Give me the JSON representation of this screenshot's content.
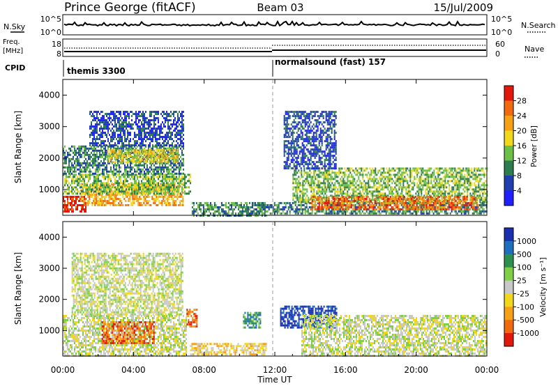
{
  "header": {
    "station": "Prince George (fitACF)",
    "beam": "Beam 03",
    "date": "15/Jul/2009"
  },
  "top_panels": {
    "nsky": {
      "left_label": "N.Sky",
      "left_ticks": [
        "10^5",
        "10^0"
      ],
      "right_ticks": [
        "10^5",
        "10^0"
      ],
      "right_label": "N.Search"
    },
    "freq": {
      "left_label_1": "Freq.",
      "left_label_2": "[MHz]",
      "left_ticks": [
        "18",
        "8"
      ],
      "right_ticks": [
        "60",
        "0"
      ],
      "right_label": "Nave"
    },
    "cpid": {
      "label": "CPID",
      "modes": [
        {
          "name": "themis 3300",
          "start_hour": 0
        },
        {
          "name": "normalsound (fast) 157",
          "start_hour": 12
        }
      ]
    }
  },
  "chart_data": [
    {
      "type": "heatmap",
      "panel": "power",
      "xlabel": "Time UT",
      "ylabel": "Slant Range [km]",
      "x_ticks": [
        "00:00",
        "04:00",
        "08:00",
        "12:00",
        "16:00",
        "20:00",
        "00:00"
      ],
      "xlim_hours": [
        0,
        24
      ],
      "y_ticks": [
        1000,
        2000,
        3000,
        4000
      ],
      "ylim": [
        180,
        4500
      ],
      "colorbar": {
        "label": "Power [dB]",
        "ticks": [
          4,
          8,
          12,
          16,
          20,
          24,
          28
        ],
        "colors": [
          "#1f1fff",
          "#1f3fb0",
          "#2e7d4e",
          "#6cbf47",
          "#f2d81c",
          "#f5a015",
          "#f26a10",
          "#e3180d"
        ]
      },
      "echo_regions": [
        {
          "t0": 0.0,
          "t1": 1.3,
          "r0": 300,
          "r1": 800,
          "level": 7
        },
        {
          "t0": 1.0,
          "t1": 6.8,
          "r0": 500,
          "r1": 1200,
          "level": 5
        },
        {
          "t0": 0.0,
          "t1": 7.2,
          "r0": 900,
          "r1": 1500,
          "level": 3
        },
        {
          "t0": 0.0,
          "t1": 6.8,
          "r0": 1500,
          "r1": 2400,
          "level": 2
        },
        {
          "t0": 1.5,
          "t1": 6.8,
          "r0": 2400,
          "r1": 3500,
          "level": 1
        },
        {
          "t0": 2.5,
          "t1": 6.5,
          "r0": 1900,
          "r1": 2300,
          "level": 4
        },
        {
          "t0": 7.3,
          "t1": 11.5,
          "r0": 200,
          "r1": 600,
          "level": 2
        },
        {
          "t0": 11.0,
          "t1": 24.0,
          "r0": 250,
          "r1": 600,
          "level": 2
        },
        {
          "t0": 13.0,
          "t1": 24.0,
          "r0": 600,
          "r1": 1700,
          "level": 3
        },
        {
          "t0": 14.0,
          "t1": 23.5,
          "r0": 400,
          "r1": 800,
          "level": 6
        },
        {
          "t0": 12.5,
          "t1": 15.5,
          "r0": 1700,
          "r1": 3500,
          "level": 1
        }
      ]
    },
    {
      "type": "heatmap",
      "panel": "velocity",
      "xlabel": "Time UT",
      "ylabel": "Slant Range [km]",
      "x_ticks": [
        "00:00",
        "04:00",
        "08:00",
        "12:00",
        "16:00",
        "20:00",
        "00:00"
      ],
      "xlim_hours": [
        0,
        24
      ],
      "y_ticks": [
        1000,
        2000,
        3000,
        4000
      ],
      "ylim": [
        180,
        4500
      ],
      "colorbar": {
        "label": "Velocity [m s⁻¹]",
        "ticks": [
          "1000",
          "500",
          "100",
          "25",
          "-25",
          "-100",
          "-500",
          "-1000"
        ],
        "colors": [
          "#1a2fb0",
          "#1f6fbf",
          "#2e8f4e",
          "#7fcf47",
          "#c8c8c8",
          "#f2d81c",
          "#f5a015",
          "#f26a10",
          "#e3180d"
        ]
      },
      "echo_regions": [
        {
          "t0": 0.0,
          "t1": 7.0,
          "r0": 200,
          "r1": 1500,
          "level": 4
        },
        {
          "t0": 0.5,
          "t1": 6.8,
          "r0": 1500,
          "r1": 3500,
          "level": 4
        },
        {
          "t0": 2.2,
          "t1": 5.2,
          "r0": 600,
          "r1": 1300,
          "level": 7
        },
        {
          "t0": 7.2,
          "t1": 11.5,
          "r0": 200,
          "r1": 600,
          "level": 5
        },
        {
          "t0": 7.0,
          "t1": 7.6,
          "r0": 1100,
          "r1": 1700,
          "level": 7
        },
        {
          "t0": 10.2,
          "t1": 11.2,
          "r0": 1100,
          "r1": 1600,
          "level": 2
        },
        {
          "t0": 12.3,
          "t1": 15.5,
          "r0": 1100,
          "r1": 1800,
          "level": 0
        },
        {
          "t0": 13.5,
          "t1": 24.0,
          "r0": 200,
          "r1": 1500,
          "level": 4
        }
      ]
    }
  ]
}
